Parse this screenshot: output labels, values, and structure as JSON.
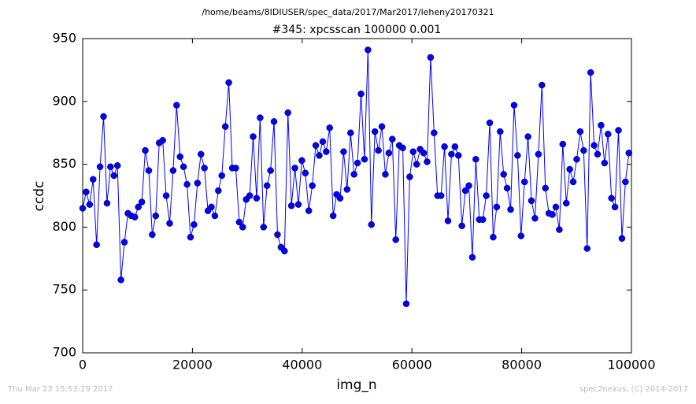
{
  "chart_data": {
    "type": "line",
    "suptitle": "/home/beams/8IDIUSER/spec_data/2017/Mar2017/leheny20170321",
    "title": "#345: xpcsscan 100000 0.001",
    "xlabel": "img_n",
    "ylabel": "ccdc",
    "footer_left": "Thu Mar 23 15:53:29 2017",
    "footer_right": "spec2nexus, (C) 2014-2017",
    "xlim": [
      0,
      100000
    ],
    "xticks": [
      0,
      20000,
      40000,
      60000,
      80000,
      100000
    ],
    "ylim": [
      700,
      950
    ],
    "yticks": [
      700,
      750,
      800,
      850,
      900,
      950
    ],
    "x": [
      0,
      634,
      1268,
      1902,
      2536,
      3170,
      3804,
      4438,
      5072,
      5706,
      6340,
      6974,
      7608,
      8242,
      8876,
      9510,
      10144,
      10778,
      11412,
      12046,
      12680,
      13314,
      13948,
      14582,
      15216,
      15850,
      16484,
      17118,
      17752,
      18386,
      19020,
      19654,
      20288,
      20922,
      21556,
      22190,
      22824,
      23458,
      24092,
      24726,
      25360,
      25994,
      26628,
      27262,
      27896,
      28530,
      29164,
      29798,
      30432,
      31066,
      31700,
      32334,
      32968,
      33602,
      34236,
      34870,
      35504,
      36138,
      36772,
      37406,
      38040,
      38674,
      39308,
      39942,
      40576,
      41210,
      41844,
      42478,
      43112,
      43746,
      44380,
      45014,
      45648,
      46282,
      46916,
      47550,
      48184,
      48818,
      49452,
      50086,
      50720,
      51354,
      51988,
      52622,
      53256,
      53890,
      54524,
      55158,
      55792,
      56426,
      57060,
      57694,
      58328,
      58962,
      59596,
      60230,
      60864,
      61498,
      62132,
      62766,
      63400,
      64034,
      64668,
      65302,
      65936,
      66570,
      67204,
      67838,
      68472,
      69106,
      69740,
      70374,
      71008,
      71642,
      72276,
      72910,
      73544,
      74178,
      74812,
      75446,
      76080,
      76714,
      77348,
      77982,
      78616,
      79250,
      79884,
      80518,
      81152,
      81786,
      82420,
      83054,
      83688,
      84322,
      84956,
      85590,
      86224,
      86858,
      87492,
      88126,
      88760,
      89394,
      90028,
      90662,
      91296,
      91930,
      92564,
      93198,
      93832,
      94466,
      95100,
      95734,
      96368,
      97002,
      97636,
      98270,
      98904,
      99538
    ],
    "series": [
      {
        "color": "#0000ff",
        "values": [
          815,
          828,
          818,
          838,
          786,
          848,
          888,
          819,
          848,
          841,
          849,
          758,
          788,
          811,
          809,
          808,
          816,
          820,
          861,
          845,
          794,
          809,
          867,
          869,
          825,
          803,
          845,
          897,
          856,
          848,
          834,
          792,
          802,
          835,
          858,
          847,
          813,
          816,
          809,
          829,
          841,
          880,
          915,
          847,
          847,
          804,
          800,
          822,
          825,
          872,
          823,
          887,
          800,
          833,
          845,
          884,
          794,
          784,
          781,
          891,
          817,
          847,
          818,
          853,
          843,
          813,
          833,
          865,
          857,
          868,
          860,
          879,
          809,
          826,
          823,
          860,
          830,
          875,
          842,
          851,
          906,
          854,
          941,
          802,
          876,
          861,
          880,
          842,
          859,
          870,
          790,
          865,
          863,
          739,
          840,
          860,
          850,
          862,
          859,
          852,
          935,
          875,
          825,
          825,
          864,
          805,
          858,
          864,
          857,
          801,
          829,
          833,
          776,
          854,
          806,
          806,
          825,
          883,
          792,
          816,
          876,
          842,
          831,
          814,
          897,
          857,
          793,
          836,
          872,
          821,
          807,
          858,
          913,
          831,
          811,
          810,
          816,
          798,
          866,
          819,
          846,
          836,
          854,
          876,
          861,
          783,
          923,
          865,
          858,
          881,
          851,
          874,
          823,
          816,
          877,
          791,
          836,
          859
        ]
      }
    ]
  }
}
